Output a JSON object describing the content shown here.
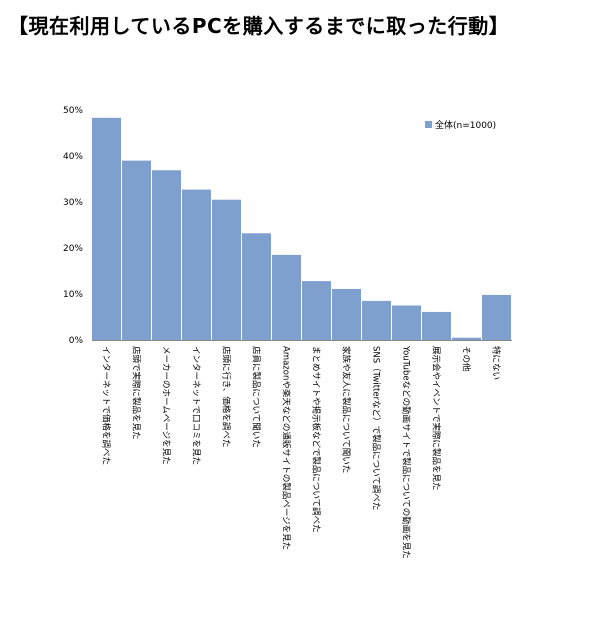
{
  "page": {
    "title": "【現在利用しているPCを購入するまでに取った行動】"
  },
  "chart_data": {
    "type": "bar",
    "title": "【現在利用しているPCを購入するまでに取った行動】",
    "xlabel": "",
    "ylabel": "",
    "ylim": [
      0,
      50
    ],
    "y_ticks": [
      "0%",
      "10%",
      "20%",
      "30%",
      "40%",
      "50%"
    ],
    "grid": false,
    "legend_position": "top-right",
    "bar_color": "#7f9fcf",
    "categories": [
      "インターネットで価格を調べた",
      "店頭で実際に製品を見た",
      "メーカーのホームページを見た",
      "インターネットで口コミを見た",
      "店頭に行き、価格を調べた",
      "店員に製品について聞いた",
      "Amazonや楽天などの通販サイトの製品ページを見た",
      "まとめサイトや掲示板などで製品について調べた",
      "家族や友人に製品について聞いた",
      "SNS（Twitterなど）で製品について調べた",
      "YouTubeなどの動画サイトで製品についての動画を見た",
      "展示会やイベントで実際に製品を見た",
      "その他",
      "特にない"
    ],
    "series": [
      {
        "name": "全体(n=1000)",
        "values": [
          48.3,
          39.0,
          36.9,
          32.7,
          30.5,
          23.2,
          18.5,
          12.8,
          11.1,
          8.5,
          7.5,
          6.1,
          0.5,
          9.8
        ]
      }
    ]
  }
}
